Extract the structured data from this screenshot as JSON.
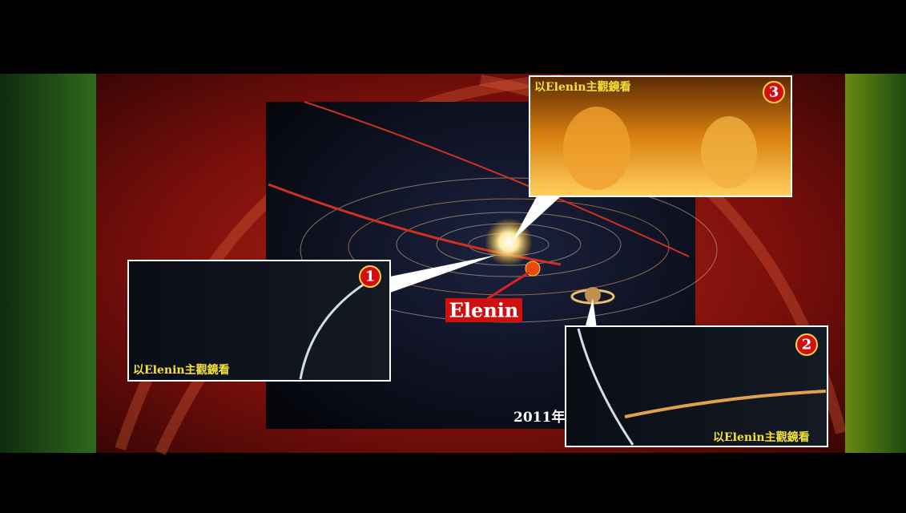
{
  "panels": [
    {
      "number": "1",
      "caption": "以Elenin主觀鏡看"
    },
    {
      "number": "2",
      "caption": "以Elenin主觀鏡看"
    },
    {
      "number": "3",
      "caption": "以Elenin主觀鏡看"
    }
  ],
  "label": "Elenin",
  "year": "2011年"
}
